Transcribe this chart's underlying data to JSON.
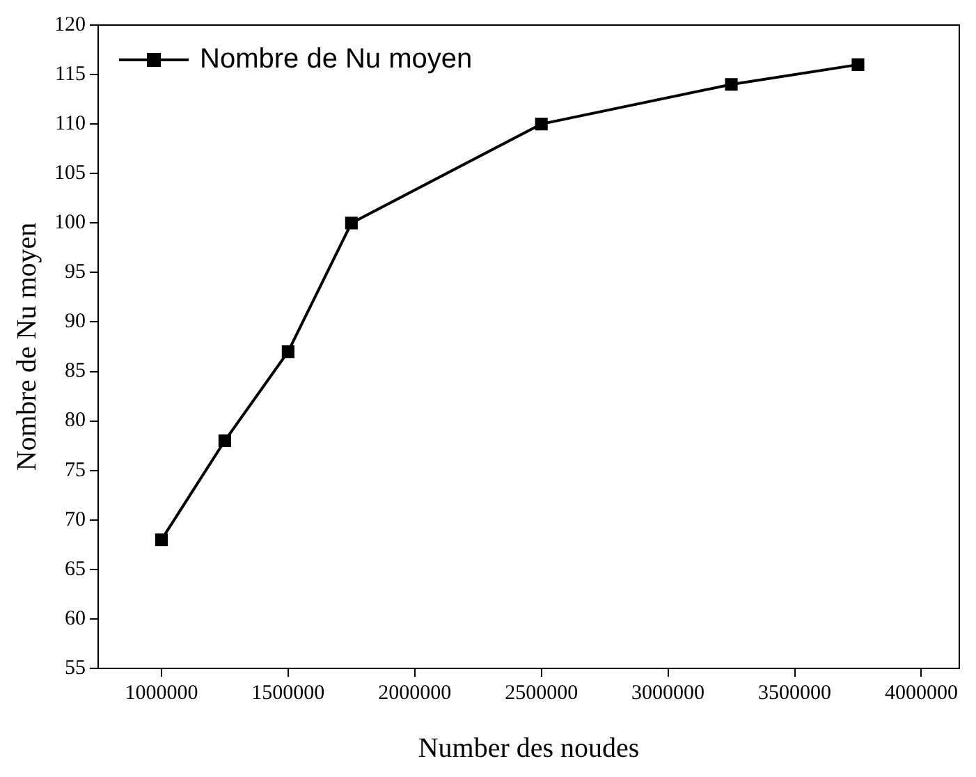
{
  "chart_data": {
    "type": "line",
    "xlabel": "Number des noudes",
    "ylabel": "Nombre de Nu moyen",
    "x": [
      1000000,
      1250000,
      1500000,
      1750000,
      2500000,
      3250000,
      3750000
    ],
    "series": [
      {
        "name": "Nombre de Nu moyen",
        "color": "#000000",
        "values": [
          68,
          78,
          87,
          100,
          110,
          114,
          116
        ]
      }
    ],
    "xlim": [
      750000,
      4150000
    ],
    "xticks": [
      1000000,
      1500000,
      2000000,
      2500000,
      3000000,
      3500000,
      4000000
    ],
    "ylim": [
      55,
      120
    ],
    "yticks": [
      55,
      60,
      65,
      70,
      75,
      80,
      85,
      90,
      95,
      100,
      105,
      110,
      115,
      120
    ],
    "grid": false,
    "legend": "top left",
    "marker": "square",
    "line_style": "solid"
  }
}
